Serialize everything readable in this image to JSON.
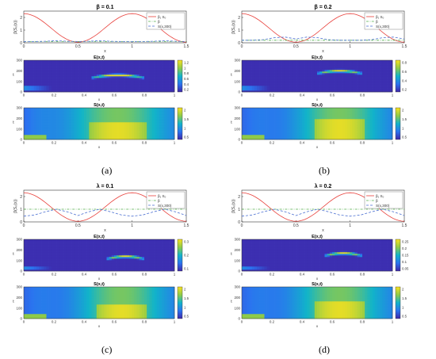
{
  "panels": [
    {
      "letter": "(a)",
      "title": "β = 0.1",
      "legend": [
        "β₁ S₀",
        "β",
        "S(x,300)"
      ],
      "xlabel_top": "x",
      "ylabel_top": "β(S₀(x))",
      "heat1_title": "E(x,t)",
      "heat2_title": "S(x,t)",
      "heat_xlabel": "x",
      "heat_ylabel": "t",
      "cb1_ticks": [
        "1.2",
        "1",
        "0.8",
        "0.6",
        "0.4",
        "0.2"
      ],
      "cb2_ticks": [
        "2",
        "1.5",
        "1",
        "0.5"
      ]
    },
    {
      "letter": "(b)",
      "title": "β = 0.2",
      "legend": [
        "β₁ S₀",
        "β",
        "S(x,300)"
      ],
      "xlabel_top": "x",
      "ylabel_top": "β(S₀(x))",
      "heat1_title": "E(x,t)",
      "heat2_title": "S(x,t)",
      "heat_xlabel": "x",
      "heat_ylabel": "t",
      "cb1_ticks": [
        "0.8",
        "0.6",
        "0.4",
        "0.2"
      ],
      "cb2_ticks": [
        "2",
        "1.5",
        "1",
        "0.5"
      ]
    },
    {
      "letter": "(c)",
      "title": "λ = 0.1",
      "legend": [
        "β₁ S₀",
        "β",
        "S(x,300)"
      ],
      "xlabel_top": "x",
      "ylabel_top": "β(S₀(x))",
      "heat1_title": "E(x,t)",
      "heat2_title": "S(x,t)",
      "heat_xlabel": "x",
      "heat_ylabel": "t",
      "cb1_ticks": [
        "0.3",
        "0.2",
        "0.1"
      ],
      "cb2_ticks": [
        "2",
        "1.5",
        "1",
        "0.5"
      ]
    },
    {
      "letter": "(d)",
      "title": "λ = 0.2",
      "legend": [
        "β₁ S₀",
        "β",
        "S(x,300)"
      ],
      "xlabel_top": "x",
      "ylabel_top": "β(S₀(x))",
      "heat1_title": "E(x,t)",
      "heat2_title": "S(x,t)",
      "heat_xlabel": "x",
      "heat_ylabel": "t",
      "cb1_ticks": [
        "0.25",
        "0.2",
        "0.15",
        "0.1",
        "0.05"
      ],
      "cb2_ticks": [
        "2",
        "1.5",
        "1",
        "0.5"
      ]
    }
  ],
  "chart_data": [
    {
      "type": "line",
      "panel": "a",
      "title": "β = 0.1",
      "xlabel": "x",
      "xlim": [
        0,
        1.5
      ],
      "ylim": [
        0,
        2.5
      ],
      "x_ticks": [
        0,
        0.5,
        1,
        1.5
      ],
      "y_ticks": [
        0,
        1,
        2
      ],
      "legend_position": "top-right",
      "series": [
        {
          "name": "β₁ S₀",
          "color": "#e8413c",
          "style": "solid",
          "x": [
            0,
            0.1,
            0.2,
            0.3,
            0.4,
            0.5,
            0.6,
            0.7,
            0.8,
            0.9,
            1.0,
            1.1,
            1.2,
            1.3,
            1.4,
            1.5
          ],
          "values": [
            2.3,
            2.1,
            1.6,
            0.95,
            0.35,
            0.05,
            0.35,
            0.95,
            1.6,
            2.1,
            2.3,
            2.1,
            1.6,
            0.95,
            0.35,
            0.05
          ]
        },
        {
          "name": "β",
          "color": "#55b04f",
          "style": "dash-dot",
          "x": [
            0,
            1.5
          ],
          "values": [
            0.1,
            0.1
          ]
        },
        {
          "name": "S(x,300)",
          "color": "#4a6fd1",
          "style": "dashed",
          "x": [
            0,
            0.1,
            0.2,
            0.3,
            0.4,
            0.5,
            0.6,
            0.7,
            0.8,
            0.9,
            1.0,
            1.1,
            1.2,
            1.3,
            1.4,
            1.5
          ],
          "values": [
            0.1,
            0.1,
            0.12,
            0.16,
            0.12,
            0.1,
            0.12,
            0.16,
            0.12,
            0.1,
            0.1,
            0.1,
            0.12,
            0.16,
            0.12,
            0.1
          ]
        }
      ]
    },
    {
      "type": "heatmap",
      "panel": "a",
      "title": "E(x,t)",
      "xlabel": "x",
      "ylabel": "t",
      "xlim": [
        0,
        1
      ],
      "ylim": [
        0,
        300
      ],
      "x_ticks": [
        0,
        0.2,
        0.4,
        0.6,
        0.8,
        1
      ],
      "y_ticks": [
        0,
        100,
        200,
        300
      ],
      "colorbar_range": [
        0.1,
        1.2
      ],
      "features": {
        "arc_x": [
          0.45,
          0.8
        ],
        "arc_t_peak": 160,
        "arc_value_peak": 1.2,
        "band_x": [
          0,
          0.2
        ],
        "band_t": [
          20,
          60
        ]
      }
    },
    {
      "type": "heatmap",
      "panel": "a",
      "title": "S(x,t)",
      "xlabel": "x",
      "ylabel": "t",
      "xlim": [
        0,
        1
      ],
      "ylim": [
        0,
        300
      ],
      "x_ticks": [
        0,
        0.2,
        0.4,
        0.6,
        0.8,
        1
      ],
      "y_ticks": [
        0,
        100,
        200,
        300
      ],
      "colorbar_range": [
        0.3,
        2.3
      ],
      "features": {
        "high_x": [
          0.45,
          0.8
        ],
        "high_t_max": 160,
        "high_value": 2.2
      }
    },
    {
      "type": "line",
      "panel": "b",
      "title": "β = 0.2",
      "xlabel": "x",
      "xlim": [
        0,
        1.5
      ],
      "ylim": [
        0,
        2.5
      ],
      "x_ticks": [
        0,
        0.5,
        1,
        1.5
      ],
      "y_ticks": [
        0,
        1,
        2
      ],
      "legend_position": "top-right",
      "series": [
        {
          "name": "β₁ S₀",
          "color": "#e8413c",
          "style": "solid",
          "x": [
            0,
            0.1,
            0.2,
            0.3,
            0.4,
            0.5,
            0.6,
            0.7,
            0.8,
            0.9,
            1.0,
            1.1,
            1.2,
            1.3,
            1.4,
            1.5
          ],
          "values": [
            2.3,
            2.1,
            1.6,
            0.95,
            0.35,
            0.05,
            0.35,
            0.95,
            1.6,
            2.1,
            2.3,
            2.1,
            1.6,
            0.95,
            0.35,
            0.05
          ]
        },
        {
          "name": "β",
          "color": "#55b04f",
          "style": "dash-dot",
          "x": [
            0,
            1.5
          ],
          "values": [
            0.2,
            0.2
          ]
        },
        {
          "name": "S(x,300)",
          "color": "#4a6fd1",
          "style": "dashed",
          "x": [
            0,
            0.1,
            0.2,
            0.3,
            0.4,
            0.5,
            0.6,
            0.7,
            0.8,
            0.9,
            1.0,
            1.1,
            1.2,
            1.3,
            1.4,
            1.5
          ],
          "values": [
            0.2,
            0.2,
            0.25,
            0.4,
            0.45,
            0.3,
            0.45,
            0.4,
            0.25,
            0.2,
            0.2,
            0.2,
            0.25,
            0.4,
            0.45,
            0.3
          ]
        }
      ]
    },
    {
      "type": "heatmap",
      "panel": "b",
      "title": "E(x,t)",
      "xlabel": "x",
      "ylabel": "t",
      "xlim": [
        0,
        1
      ],
      "ylim": [
        0,
        300
      ],
      "x_ticks": [
        0,
        0.2,
        0.4,
        0.6,
        0.8,
        1
      ],
      "y_ticks": [
        0,
        100,
        200,
        300
      ],
      "colorbar_range": [
        0.1,
        0.9
      ],
      "features": {
        "arc_x": [
          0.5,
          0.8
        ],
        "arc_t_peak": 200,
        "arc_value_peak": 0.9,
        "band_x": [
          0,
          0.2
        ],
        "band_t": [
          20,
          60
        ]
      }
    },
    {
      "type": "heatmap",
      "panel": "b",
      "title": "S(x,t)",
      "xlabel": "x",
      "ylabel": "t",
      "xlim": [
        0,
        1
      ],
      "ylim": [
        0,
        300
      ],
      "x_ticks": [
        0,
        0.2,
        0.4,
        0.6,
        0.8,
        1
      ],
      "y_ticks": [
        0,
        100,
        200,
        300
      ],
      "colorbar_range": [
        0.3,
        2.3
      ],
      "features": {
        "high_x": [
          0.5,
          0.8
        ],
        "high_t_max": 200,
        "high_value": 2.2
      }
    },
    {
      "type": "line",
      "panel": "c",
      "title": "λ = 0.1",
      "xlabel": "x",
      "xlim": [
        0,
        1.5
      ],
      "ylim": [
        0,
        2.5
      ],
      "x_ticks": [
        0,
        0.5,
        1,
        1.5
      ],
      "y_ticks": [
        0,
        1,
        2
      ],
      "legend_position": "top-right",
      "series": [
        {
          "name": "β₁ S₀",
          "color": "#e8413c",
          "style": "solid",
          "x": [
            0,
            0.1,
            0.2,
            0.3,
            0.4,
            0.5,
            0.6,
            0.7,
            0.8,
            0.9,
            1.0,
            1.1,
            1.2,
            1.3,
            1.4,
            1.5
          ],
          "values": [
            2.3,
            2.1,
            1.6,
            0.95,
            0.35,
            0.05,
            0.35,
            0.95,
            1.6,
            2.1,
            2.3,
            2.1,
            1.6,
            0.95,
            0.35,
            0.05
          ]
        },
        {
          "name": "β",
          "color": "#55b04f",
          "style": "dash-dot",
          "x": [
            0,
            1.5
          ],
          "values": [
            1.0,
            1.0
          ]
        },
        {
          "name": "S(x,300)",
          "color": "#4a6fd1",
          "style": "dashed",
          "x": [
            0,
            0.1,
            0.2,
            0.3,
            0.4,
            0.5,
            0.6,
            0.7,
            0.8,
            0.9,
            1.0,
            1.1,
            1.2,
            1.3,
            1.4,
            1.5
          ],
          "values": [
            0.45,
            0.55,
            0.8,
            1.0,
            0.8,
            0.5,
            0.8,
            1.0,
            0.8,
            0.55,
            0.45,
            0.55,
            0.8,
            1.0,
            0.8,
            0.5
          ]
        }
      ]
    },
    {
      "type": "heatmap",
      "panel": "c",
      "title": "E(x,t)",
      "xlabel": "x",
      "ylabel": "t",
      "xlim": [
        0,
        1
      ],
      "ylim": [
        0,
        300
      ],
      "x_ticks": [
        0,
        0.2,
        0.4,
        0.6,
        0.8,
        1
      ],
      "y_ticks": [
        0,
        100,
        200,
        300
      ],
      "colorbar_range": [
        0.02,
        0.35
      ],
      "features": {
        "arc_x": [
          0.55,
          0.8
        ],
        "arc_t_peak": 140,
        "arc_value_peak": 0.35,
        "band_x": [
          0,
          0.2
        ],
        "band_t": [
          10,
          40
        ]
      }
    },
    {
      "type": "heatmap",
      "panel": "c",
      "title": "S(x,t)",
      "xlabel": "x",
      "ylabel": "t",
      "xlim": [
        0,
        1
      ],
      "ylim": [
        0,
        300
      ],
      "x_ticks": [
        0,
        0.2,
        0.4,
        0.6,
        0.8,
        1
      ],
      "y_ticks": [
        0,
        100,
        200,
        300
      ],
      "colorbar_range": [
        0.3,
        2.3
      ],
      "features": {
        "high_x": [
          0.5,
          0.8
        ],
        "high_t_max": 140,
        "high_value": 2.2
      }
    },
    {
      "type": "line",
      "panel": "d",
      "title": "λ = 0.2",
      "xlabel": "x",
      "xlim": [
        0,
        1.5
      ],
      "ylim": [
        0,
        2.5
      ],
      "x_ticks": [
        0,
        0.5,
        1,
        1.5
      ],
      "y_ticks": [
        0,
        1,
        2
      ],
      "legend_position": "top-right",
      "series": [
        {
          "name": "β₁ S₀",
          "color": "#e8413c",
          "style": "solid",
          "x": [
            0,
            0.1,
            0.2,
            0.3,
            0.4,
            0.5,
            0.6,
            0.7,
            0.8,
            0.9,
            1.0,
            1.1,
            1.2,
            1.3,
            1.4,
            1.5
          ],
          "values": [
            2.3,
            2.1,
            1.6,
            0.95,
            0.35,
            0.05,
            0.35,
            0.95,
            1.6,
            2.1,
            2.3,
            2.1,
            1.6,
            0.95,
            0.35,
            0.05
          ]
        },
        {
          "name": "β",
          "color": "#55b04f",
          "style": "dash-dot",
          "x": [
            0,
            1.5
          ],
          "values": [
            1.0,
            1.0
          ]
        },
        {
          "name": "S(x,300)",
          "color": "#4a6fd1",
          "style": "dashed",
          "x": [
            0,
            0.1,
            0.2,
            0.3,
            0.4,
            0.5,
            0.6,
            0.7,
            0.8,
            0.9,
            1.0,
            1.1,
            1.2,
            1.3,
            1.4,
            1.5
          ],
          "values": [
            0.45,
            0.55,
            0.8,
            1.0,
            0.8,
            0.5,
            0.8,
            1.0,
            0.8,
            0.55,
            0.45,
            0.55,
            0.8,
            1.0,
            0.8,
            0.5
          ]
        }
      ]
    },
    {
      "type": "heatmap",
      "panel": "d",
      "title": "E(x,t)",
      "xlabel": "x",
      "ylabel": "t",
      "xlim": [
        0,
        1
      ],
      "ylim": [
        0,
        300
      ],
      "x_ticks": [
        0,
        0.2,
        0.4,
        0.6,
        0.8,
        1
      ],
      "y_ticks": [
        0,
        100,
        200,
        300
      ],
      "colorbar_range": [
        0.02,
        0.28
      ],
      "features": {
        "arc_x": [
          0.55,
          0.8
        ],
        "arc_t_peak": 170,
        "arc_value_peak": 0.28,
        "band_x": [
          0,
          0.2
        ],
        "band_t": [
          10,
          40
        ]
      }
    },
    {
      "type": "heatmap",
      "panel": "d",
      "title": "S(x,t)",
      "xlabel": "x",
      "ylabel": "t",
      "xlim": [
        0,
        1
      ],
      "ylim": [
        0,
        300
      ],
      "x_ticks": [
        0,
        0.2,
        0.4,
        0.6,
        0.8,
        1
      ],
      "y_ticks": [
        0,
        100,
        200,
        300
      ],
      "colorbar_range": [
        0.3,
        2.3
      ],
      "features": {
        "high_x": [
          0.5,
          0.8
        ],
        "high_t_max": 170,
        "high_value": 2.2
      }
    }
  ]
}
